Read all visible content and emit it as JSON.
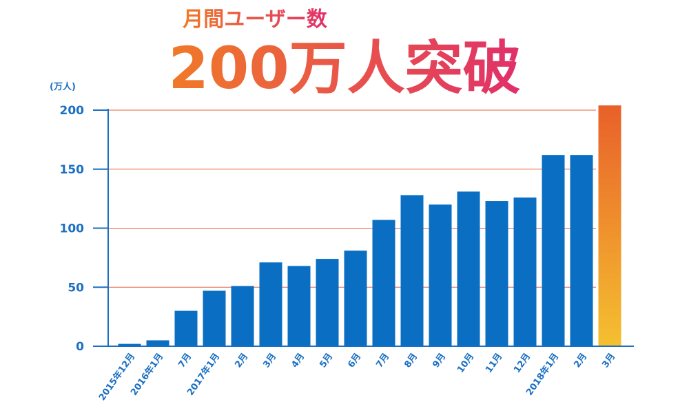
{
  "chart_data": {
    "type": "bar",
    "subtitle": "月間ユーザー数",
    "title": "200万人突破",
    "ylabel": "(万人)",
    "xlabel": "",
    "ylim": [
      0,
      200
    ],
    "yticks": [
      0,
      50,
      100,
      150,
      200
    ],
    "grid": true,
    "categories": [
      "2015年12月",
      "2016年1月",
      "7月",
      "2017年1月",
      "2月",
      "3月",
      "4月",
      "5月",
      "6月",
      "7月",
      "8月",
      "9月",
      "10月",
      "11月",
      "12月",
      "2018年1月",
      "2月",
      "3月"
    ],
    "values": [
      2,
      5,
      30,
      47,
      51,
      71,
      68,
      74,
      81,
      107,
      128,
      120,
      131,
      123,
      126,
      162,
      162,
      204
    ],
    "colors": {
      "bar": "#0a6fc2",
      "highlight_top": "#e8602a",
      "highlight_bottom": "#f5c030",
      "axis": "#1a6fc2",
      "grid": "#e8603a",
      "title_left": "#f07a28",
      "title_right": "#e0306a"
    }
  }
}
